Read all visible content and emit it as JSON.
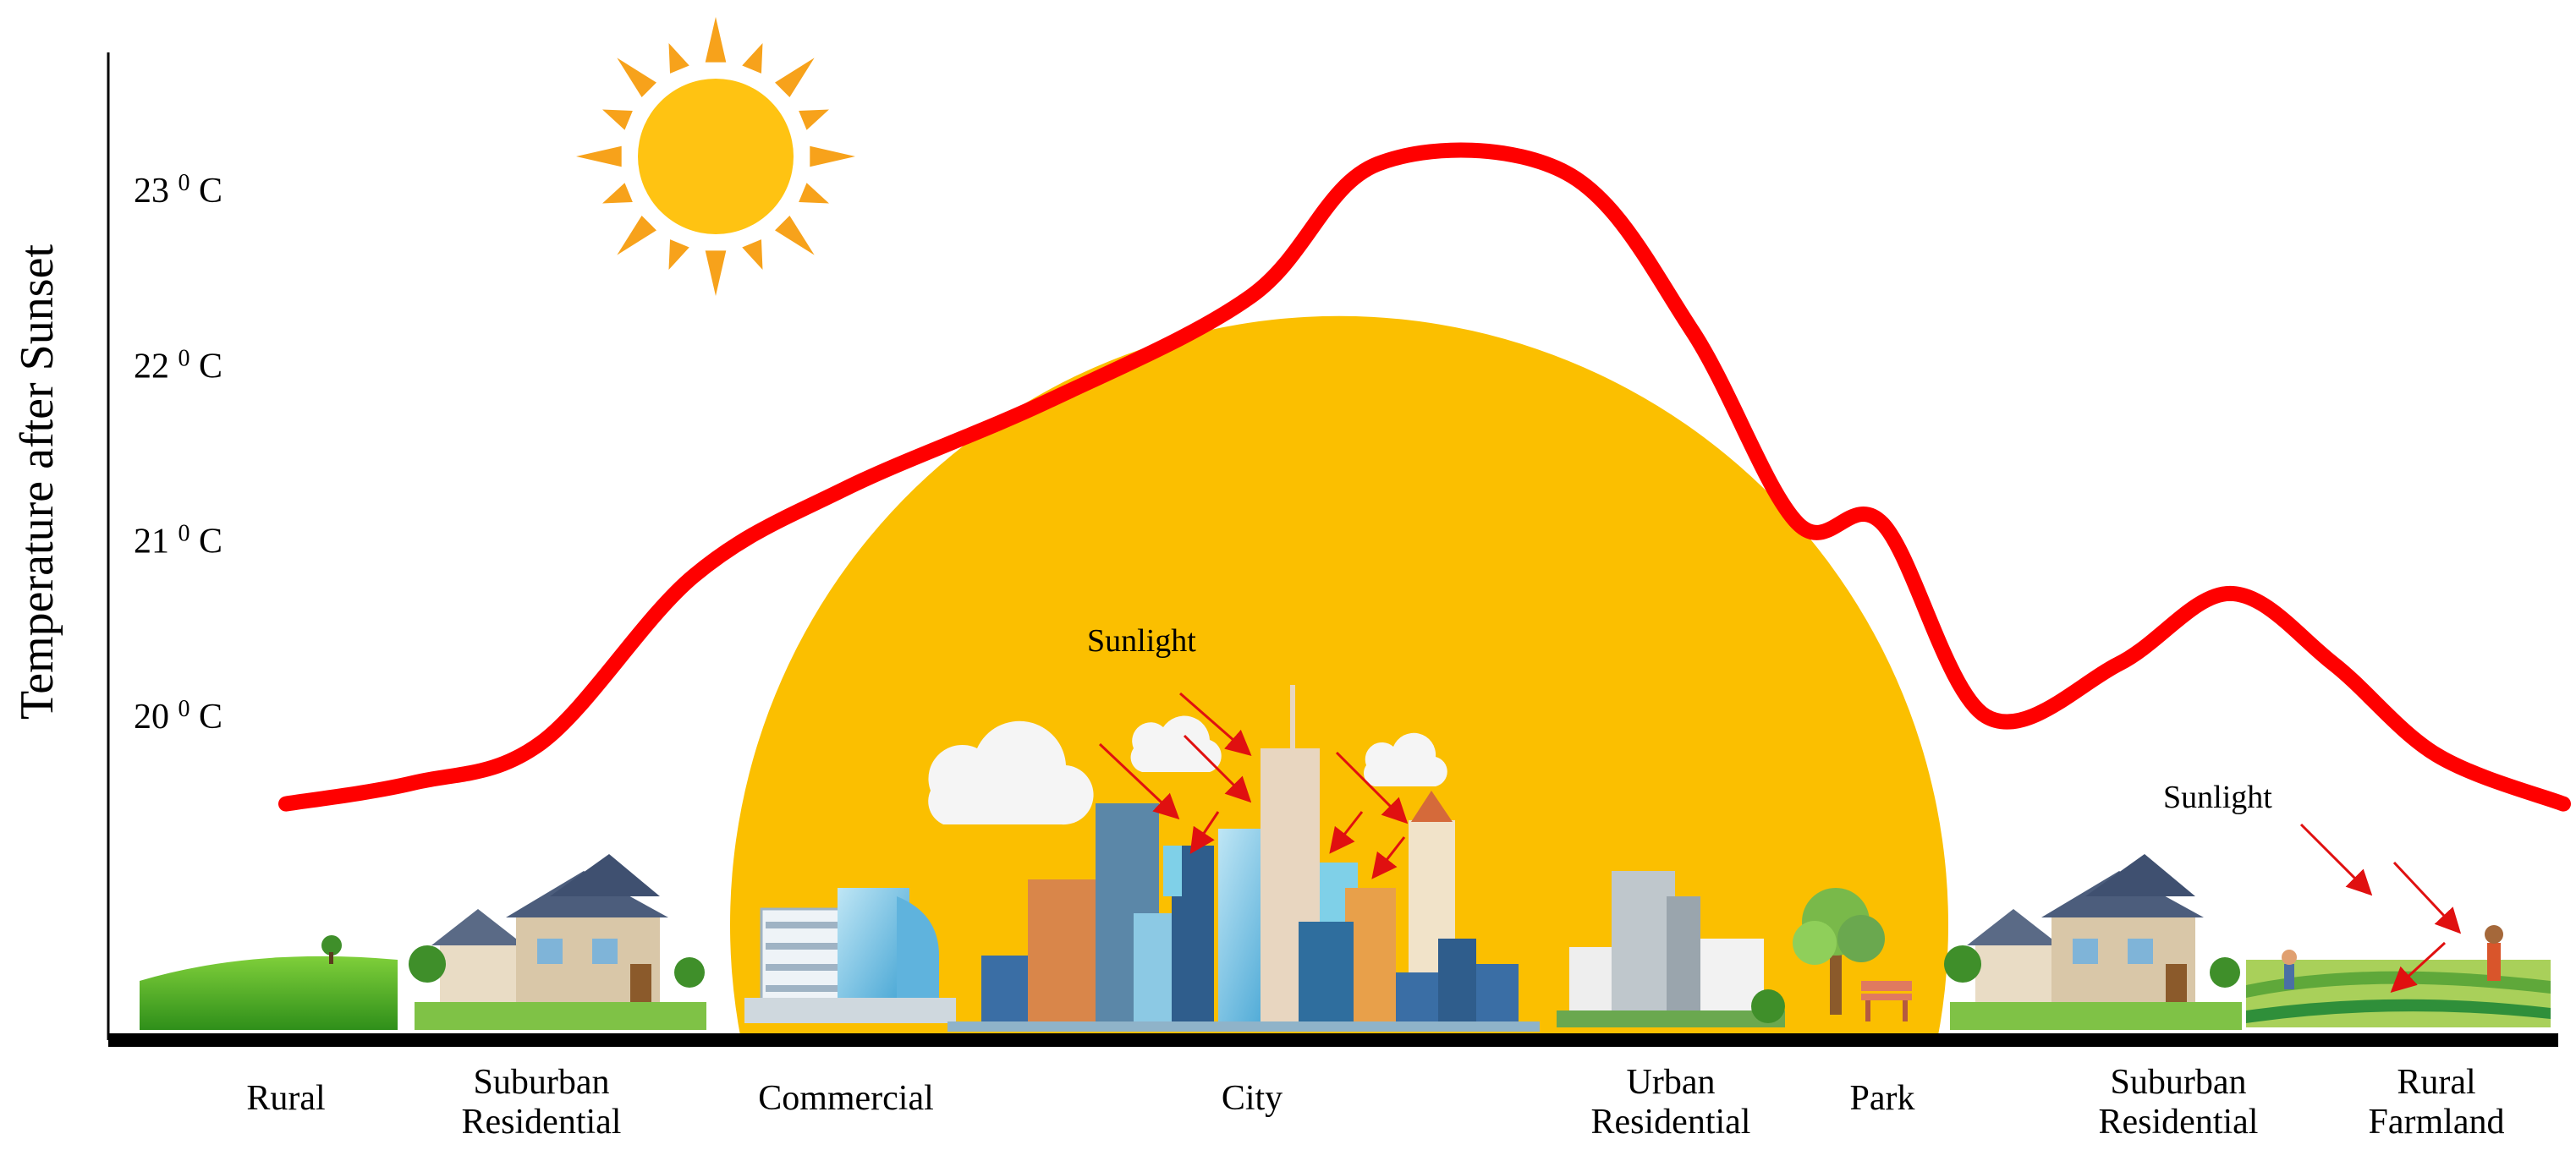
{
  "chart_data": {
    "type": "line",
    "ylabel": "Temperature after Sunset",
    "y_ticks": [
      {
        "value": 20,
        "label": "20",
        "unit": "0 C"
      },
      {
        "value": 21,
        "label": "21",
        "unit": "0 C"
      },
      {
        "value": 22,
        "label": "22",
        "unit": "0 C"
      },
      {
        "value": 23,
        "label": "23",
        "unit": "0 C"
      }
    ],
    "categories": [
      [
        "Rural"
      ],
      [
        "Suburban",
        "Residential"
      ],
      [
        "Commercial"
      ],
      [
        "City"
      ],
      [
        "Urban",
        "Residential"
      ],
      [
        "Park"
      ],
      [
        "Suburban",
        "Residential"
      ],
      [
        "Rural",
        "Farmland"
      ]
    ],
    "series": [
      {
        "color": "#ff0000",
        "points": [
          [
            0.0,
            19.5
          ],
          [
            0.5,
            19.62
          ],
          [
            1.0,
            19.85
          ],
          [
            1.5,
            20.8
          ],
          [
            2.0,
            21.3
          ],
          [
            2.5,
            21.8
          ],
          [
            3.0,
            22.4
          ],
          [
            3.3,
            23.15
          ],
          [
            3.75,
            23.1
          ],
          [
            4.1,
            22.2
          ],
          [
            4.6,
            21.1
          ],
          [
            5.0,
            21.1
          ],
          [
            5.35,
            20.0
          ],
          [
            5.8,
            20.3
          ],
          [
            6.2,
            20.7
          ],
          [
            6.6,
            20.3
          ],
          [
            7.0,
            19.78
          ],
          [
            7.5,
            19.5
          ]
        ]
      }
    ],
    "ylim": [
      19.0,
      23.4
    ],
    "grid": false
  },
  "annotations": {
    "sunlight_city": "Sunlight",
    "sunlight_farmland": "Sunlight"
  },
  "colors": {
    "curve": "#ff0000",
    "sun_disc": "#fbbf00",
    "small_sun": "#ffc312",
    "sun_rays": "#f7a21b",
    "axis": "#000000",
    "arrows": "#e01010"
  },
  "icons": [
    "sun-icon",
    "grass-field-icon",
    "suburban-house-icon",
    "commercial-building-icon",
    "city-skyline-icon",
    "urban-apartment-icon",
    "park-tree-icon",
    "farmland-icon",
    "cloud-icon"
  ]
}
